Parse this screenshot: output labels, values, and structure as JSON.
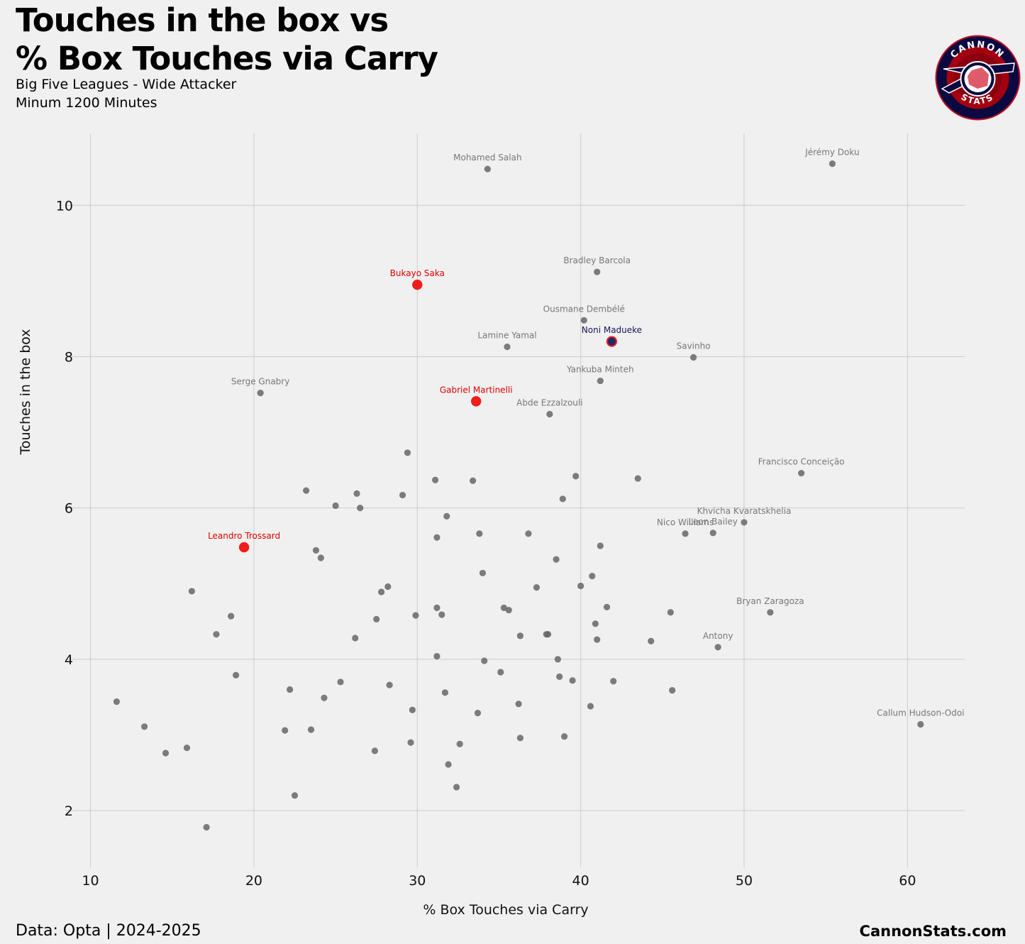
{
  "header": {
    "title_line1": "Touches in the box vs",
    "title_line2": "% Box Touches via Carry",
    "subtitle_line1": "Big Five Leagues - Wide Attacker",
    "subtitle_line2": "Minum 1200 Minutes"
  },
  "logo": {
    "text_top": "CANNON",
    "text_bottom": "STATS",
    "colors": {
      "outer": "#0a0a40",
      "ring": "#b00020",
      "inner": "#ffffff"
    }
  },
  "footer": {
    "source": "Data: Opta | 2024-2025",
    "brand": "CannonStats.com"
  },
  "colors": {
    "background": "#f0f0f0",
    "grid": "#cccccc",
    "default_point": "#666666",
    "default_label": "#777777",
    "arsenal": "#ee1111",
    "arsenal_label": "#dd0000",
    "chelsea_fill": "#1a1a5e",
    "chelsea_edge": "#ee2222",
    "chelsea_label": "#15155a"
  },
  "chart_data": {
    "type": "scatter",
    "xlabel": "% Box Touches via Carry",
    "ylabel": "Touches in the box",
    "xlim": [
      8.5,
      63.5
    ],
    "ylim": [
      1.25,
      10.95
    ],
    "xticks": [
      10,
      20,
      30,
      40,
      50,
      60
    ],
    "yticks": [
      2,
      4,
      6,
      8,
      10
    ],
    "grid": true,
    "labeled_points": [
      {
        "name": "Jérémy Doku",
        "x": 55.4,
        "y": 10.55,
        "group": "default"
      },
      {
        "name": "Mohamed Salah",
        "x": 34.3,
        "y": 10.48,
        "group": "default"
      },
      {
        "name": "Bradley Barcola",
        "x": 41.0,
        "y": 9.12,
        "group": "default"
      },
      {
        "name": "Bukayo Saka",
        "x": 30.0,
        "y": 8.95,
        "group": "arsenal"
      },
      {
        "name": "Ousmane Dembélé",
        "x": 40.2,
        "y": 8.48,
        "group": "default"
      },
      {
        "name": "Noni Madueke",
        "x": 41.9,
        "y": 8.2,
        "group": "chelsea"
      },
      {
        "name": "Lamine Yamal",
        "x": 35.5,
        "y": 8.13,
        "group": "default"
      },
      {
        "name": "Savinho",
        "x": 46.9,
        "y": 7.99,
        "group": "default"
      },
      {
        "name": "Yankuba Minteh",
        "x": 41.2,
        "y": 7.68,
        "group": "default"
      },
      {
        "name": "Serge Gnabry",
        "x": 20.4,
        "y": 7.52,
        "group": "default"
      },
      {
        "name": "Gabriel Martinelli",
        "x": 33.6,
        "y": 7.41,
        "group": "arsenal"
      },
      {
        "name": "Abde Ezzalzouli",
        "x": 38.1,
        "y": 7.24,
        "group": "default"
      },
      {
        "name": "Francisco Conceição",
        "x": 53.5,
        "y": 6.46,
        "group": "default"
      },
      {
        "name": "Khvicha Kvaratskhelia",
        "x": 50.0,
        "y": 5.81,
        "group": "default"
      },
      {
        "name": "Leon Bailey",
        "x": 48.1,
        "y": 5.67,
        "group": "default"
      },
      {
        "name": "Nico Williams",
        "x": 46.4,
        "y": 5.66,
        "group": "default"
      },
      {
        "name": "Leandro Trossard",
        "x": 19.4,
        "y": 5.48,
        "group": "arsenal"
      },
      {
        "name": "Bryan Zaragoza",
        "x": 51.6,
        "y": 4.62,
        "group": "default"
      },
      {
        "name": "Antony",
        "x": 48.4,
        "y": 4.16,
        "group": "default"
      },
      {
        "name": "Callum Hudson-Odoi",
        "x": 60.8,
        "y": 3.14,
        "group": "default"
      }
    ],
    "other_points": [
      [
        29.4,
        6.73
      ],
      [
        31.1,
        6.37
      ],
      [
        33.4,
        6.36
      ],
      [
        39.7,
        6.42
      ],
      [
        43.5,
        6.39
      ],
      [
        23.2,
        6.23
      ],
      [
        26.3,
        6.19
      ],
      [
        29.1,
        6.17
      ],
      [
        38.9,
        6.12
      ],
      [
        25.0,
        6.03
      ],
      [
        26.5,
        6.0
      ],
      [
        31.8,
        5.89
      ],
      [
        31.2,
        5.61
      ],
      [
        33.8,
        5.66
      ],
      [
        36.8,
        5.66
      ],
      [
        41.2,
        5.5
      ],
      [
        23.8,
        5.44
      ],
      [
        24.1,
        5.34
      ],
      [
        38.5,
        5.32
      ],
      [
        34.0,
        5.14
      ],
      [
        40.7,
        5.1
      ],
      [
        40.0,
        4.97
      ],
      [
        37.3,
        4.95
      ],
      [
        28.2,
        4.96
      ],
      [
        27.8,
        4.89
      ],
      [
        16.2,
        4.9
      ],
      [
        31.2,
        4.68
      ],
      [
        35.3,
        4.68
      ],
      [
        35.6,
        4.65
      ],
      [
        41.6,
        4.69
      ],
      [
        45.5,
        4.62
      ],
      [
        31.5,
        4.59
      ],
      [
        29.9,
        4.58
      ],
      [
        18.6,
        4.57
      ],
      [
        27.5,
        4.53
      ],
      [
        40.9,
        4.47
      ],
      [
        17.7,
        4.33
      ],
      [
        37.9,
        4.33
      ],
      [
        38.0,
        4.33
      ],
      [
        36.3,
        4.31
      ],
      [
        26.2,
        4.28
      ],
      [
        41.0,
        4.26
      ],
      [
        44.3,
        4.24
      ],
      [
        31.2,
        4.04
      ],
      [
        34.1,
        3.98
      ],
      [
        38.6,
        4.0
      ],
      [
        35.1,
        3.83
      ],
      [
        18.9,
        3.79
      ],
      [
        38.7,
        3.77
      ],
      [
        39.5,
        3.72
      ],
      [
        42.0,
        3.71
      ],
      [
        25.3,
        3.7
      ],
      [
        28.3,
        3.66
      ],
      [
        22.2,
        3.6
      ],
      [
        45.6,
        3.59
      ],
      [
        31.7,
        3.56
      ],
      [
        24.3,
        3.49
      ],
      [
        11.6,
        3.44
      ],
      [
        36.2,
        3.41
      ],
      [
        40.6,
        3.38
      ],
      [
        29.7,
        3.33
      ],
      [
        33.7,
        3.29
      ],
      [
        13.3,
        3.11
      ],
      [
        21.9,
        3.06
      ],
      [
        23.5,
        3.07
      ],
      [
        39.0,
        2.98
      ],
      [
        36.3,
        2.96
      ],
      [
        29.6,
        2.9
      ],
      [
        32.6,
        2.88
      ],
      [
        15.9,
        2.83
      ],
      [
        27.4,
        2.79
      ],
      [
        14.6,
        2.76
      ],
      [
        31.9,
        2.61
      ],
      [
        32.4,
        2.31
      ],
      [
        22.5,
        2.2
      ],
      [
        17.1,
        1.78
      ]
    ]
  }
}
